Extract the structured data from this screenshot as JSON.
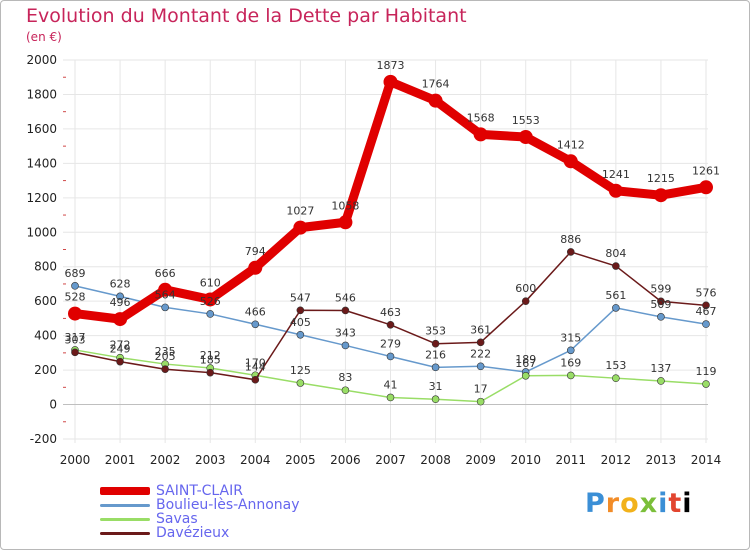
{
  "header": {
    "title": "Evolution du Montant de la Dette par Habitant",
    "subtitle": "(en €)"
  },
  "chart_data": {
    "type": "line",
    "ylim": [
      -200,
      2000
    ],
    "yticks": [
      -200,
      0,
      200,
      400,
      600,
      800,
      1000,
      1200,
      1400,
      1600,
      1800,
      2000
    ],
    "grid": true,
    "legend_position": "bottom-left",
    "x": [
      2000,
      2001,
      2002,
      2003,
      2004,
      2005,
      2006,
      2007,
      2008,
      2009,
      2010,
      2011,
      2012,
      2013,
      2014
    ],
    "series": [
      {
        "name": "SAINT-CLAIR",
        "color": "#e00000",
        "values": [
          528,
          496,
          666,
          610,
          794,
          1027,
          1058,
          1873,
          1764,
          1568,
          1553,
          1412,
          1241,
          1215,
          1261
        ]
      },
      {
        "name": "Boulieu-lès-Annonay",
        "color": "#6699cc",
        "values": [
          689,
          628,
          564,
          526,
          466,
          405,
          343,
          279,
          216,
          222,
          189,
          315,
          561,
          509,
          467
        ]
      },
      {
        "name": "Savas",
        "color": "#99dd66",
        "values": [
          317,
          272,
          235,
          212,
          170,
          125,
          83,
          41,
          31,
          17,
          167,
          169,
          153,
          137,
          119
        ]
      },
      {
        "name": "Davézieux",
        "color": "#6b1a1a",
        "values": [
          303,
          249,
          205,
          185,
          144,
          547,
          546,
          463,
          353,
          361,
          600,
          886,
          804,
          599,
          576
        ]
      }
    ]
  },
  "logo": {
    "text": "Proxiti"
  }
}
